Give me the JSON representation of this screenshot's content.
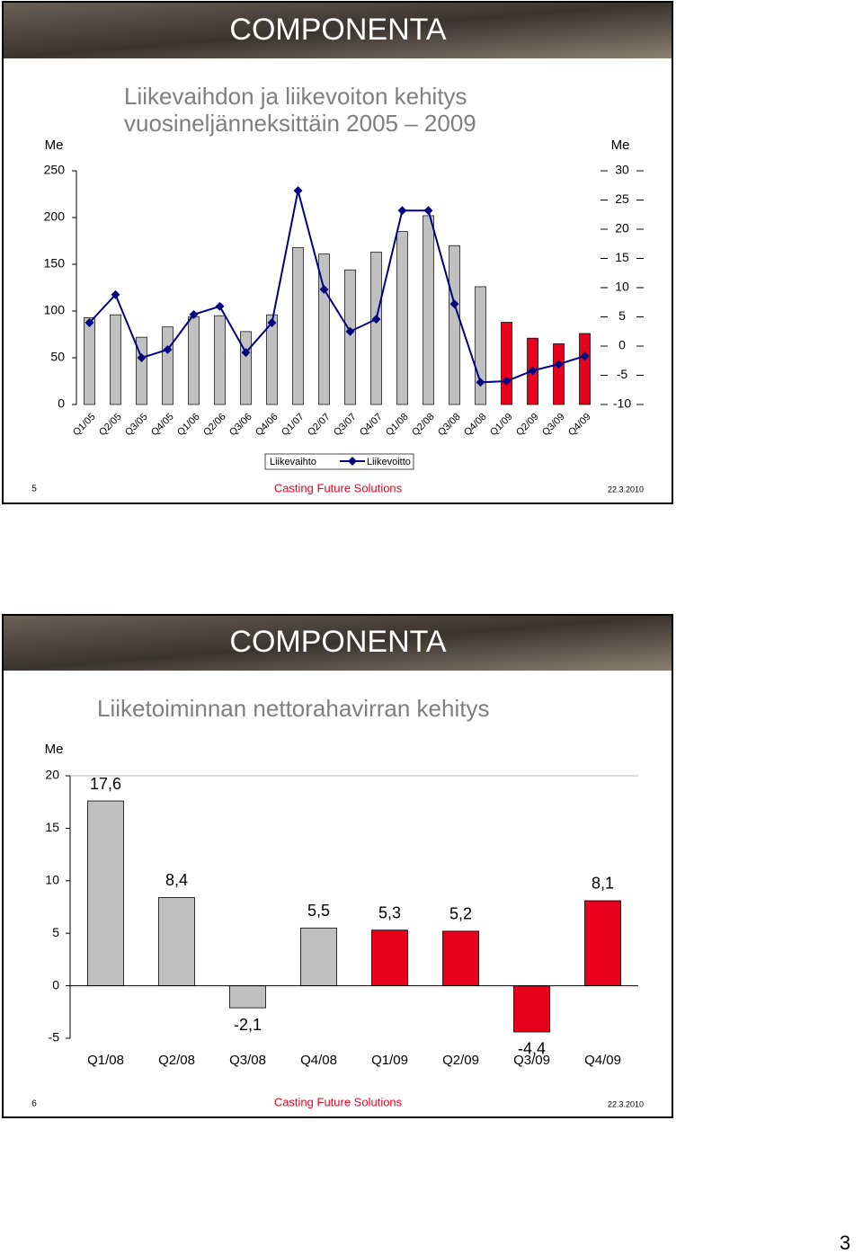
{
  "page_number": "3",
  "slides": [
    {
      "logo": "COMPONENTA",
      "footer": {
        "number": "5",
        "slogan": "Casting Future Solutions",
        "date": "22.3.2010"
      }
    },
    {
      "logo": "COMPONENTA",
      "footer": {
        "number": "6",
        "slogan": "Casting Future Solutions",
        "date": "22.3.2010"
      }
    }
  ],
  "chart_data": [
    {
      "type": "bar_line",
      "title": "Liikevaihdon ja liikevoiton kehitys vuosineljänneksittäin 2005 – 2009",
      "y_label": "Me",
      "y2_label": "Me",
      "categories": [
        "Q1/05",
        "Q2/05",
        "Q3/05",
        "Q4/05",
        "Q1/06",
        "Q2/06",
        "Q3/06",
        "Q4/06",
        "Q1/07",
        "Q2/07",
        "Q3/07",
        "Q4/07",
        "Q1/08",
        "Q2/08",
        "Q3/08",
        "Q4/08",
        "Q1/09",
        "Q2/09",
        "Q3/09",
        "Q4/09"
      ],
      "ylim": [
        0,
        250
      ],
      "yticks": [
        0,
        50,
        100,
        150,
        200,
        250
      ],
      "y2lim": [
        -10,
        30
      ],
      "y2ticks": [
        -10,
        -5,
        0,
        5,
        10,
        15,
        20,
        25,
        30
      ],
      "legend": "bottom",
      "series": [
        {
          "name": "Liikevaihto",
          "type": "bar",
          "colors": [
            "#c0c0c0",
            "#c0c0c0",
            "#c0c0c0",
            "#c0c0c0",
            "#c0c0c0",
            "#c0c0c0",
            "#c0c0c0",
            "#c0c0c0",
            "#c0c0c0",
            "#c0c0c0",
            "#c0c0c0",
            "#c0c0c0",
            "#c0c0c0",
            "#c0c0c0",
            "#c0c0c0",
            "#c0c0c0",
            "#e8001c",
            "#e8001c",
            "#e8001c",
            "#e8001c"
          ],
          "values": [
            93,
            96,
            72,
            83,
            94,
            95,
            78,
            96,
            168,
            161,
            144,
            163,
            185,
            202,
            170,
            126,
            88,
            71,
            65,
            76
          ]
        },
        {
          "name": "Liikevoitto",
          "type": "line",
          "axis": "y2",
          "color": "#000080",
          "values": [
            4.0,
            8.8,
            -2.0,
            -0.6,
            5.4,
            6.8,
            -1.1,
            4.0,
            26.6,
            9.7,
            2.5,
            4.6,
            23.2,
            23.2,
            7.2,
            -6.2,
            -6.0,
            -4.2,
            -3.1,
            -1.7
          ]
        }
      ]
    },
    {
      "type": "bar",
      "title": "Liiketoiminnan nettorahavirran kehitys",
      "y_label": "Me",
      "categories": [
        "Q1/08",
        "Q2/08",
        "Q3/08",
        "Q4/08",
        "Q1/09",
        "Q2/09",
        "Q3/09",
        "Q4/09"
      ],
      "values": [
        17.6,
        8.4,
        -2.1,
        5.5,
        5.3,
        5.2,
        -4.4,
        8.1
      ],
      "value_labels": [
        "17,6",
        "8,4",
        "-2,1",
        "5,5",
        "5,3",
        "5,2",
        "-4,4",
        "8,1"
      ],
      "colors": [
        "#c0c0c0",
        "#c0c0c0",
        "#c0c0c0",
        "#c0c0c0",
        "#e8001c",
        "#e8001c",
        "#e8001c",
        "#e8001c"
      ],
      "ylim": [
        -5,
        20
      ],
      "yticks": [
        -5,
        0,
        5,
        10,
        15,
        20
      ]
    }
  ]
}
